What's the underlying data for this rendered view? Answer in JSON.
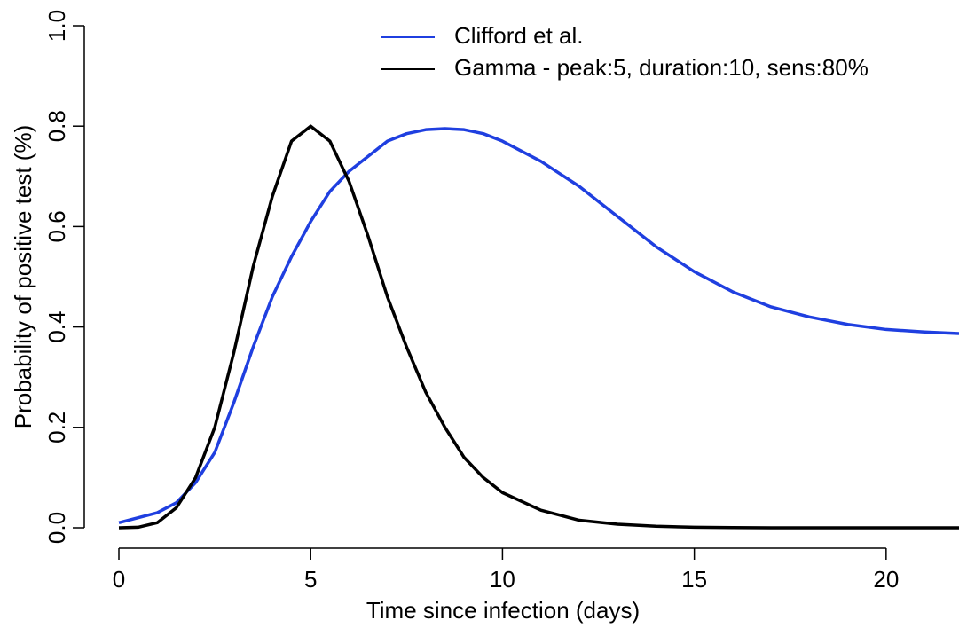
{
  "chart_data": {
    "type": "line",
    "xlabel": "Time since infection (days)",
    "ylabel": "Probability of positive test (%)",
    "x": [
      0,
      0.5,
      1,
      1.5,
      2,
      2.5,
      3,
      3.5,
      4,
      4.5,
      5,
      5.5,
      6,
      6.5,
      7,
      7.5,
      8,
      8.5,
      9,
      9.5,
      10,
      11,
      12,
      13,
      14,
      15,
      16,
      17,
      18,
      19,
      20,
      21,
      21.9
    ],
    "series": [
      {
        "name": "Clifford et al.",
        "color": "#1f3fe0",
        "values": [
          0.01,
          0.02,
          0.03,
          0.05,
          0.09,
          0.15,
          0.25,
          0.36,
          0.46,
          0.54,
          0.61,
          0.67,
          0.71,
          0.74,
          0.77,
          0.785,
          0.793,
          0.795,
          0.793,
          0.785,
          0.77,
          0.73,
          0.68,
          0.62,
          0.56,
          0.51,
          0.47,
          0.44,
          0.42,
          0.405,
          0.395,
          0.39,
          0.387
        ]
      },
      {
        "name": "Gamma - peak:5, duration:10, sens:80%",
        "color": "#000000",
        "values": [
          0,
          0.001,
          0.01,
          0.04,
          0.1,
          0.2,
          0.35,
          0.52,
          0.66,
          0.77,
          0.8,
          0.77,
          0.69,
          0.58,
          0.46,
          0.36,
          0.27,
          0.2,
          0.14,
          0.1,
          0.07,
          0.035,
          0.015,
          0.007,
          0.003,
          0.001,
          0.0005,
          0,
          0,
          0,
          0,
          0,
          0
        ]
      }
    ],
    "xlim": [
      0,
      21.9
    ],
    "ylim": [
      0,
      1
    ],
    "xticks": [
      0,
      5,
      10,
      15,
      20
    ],
    "yticks": [
      {
        "value": 0,
        "label": "0.0"
      },
      0.2,
      0.4,
      0.6,
      0.8,
      {
        "value": 1,
        "label": "1.0"
      }
    ],
    "legend": "top-right"
  }
}
